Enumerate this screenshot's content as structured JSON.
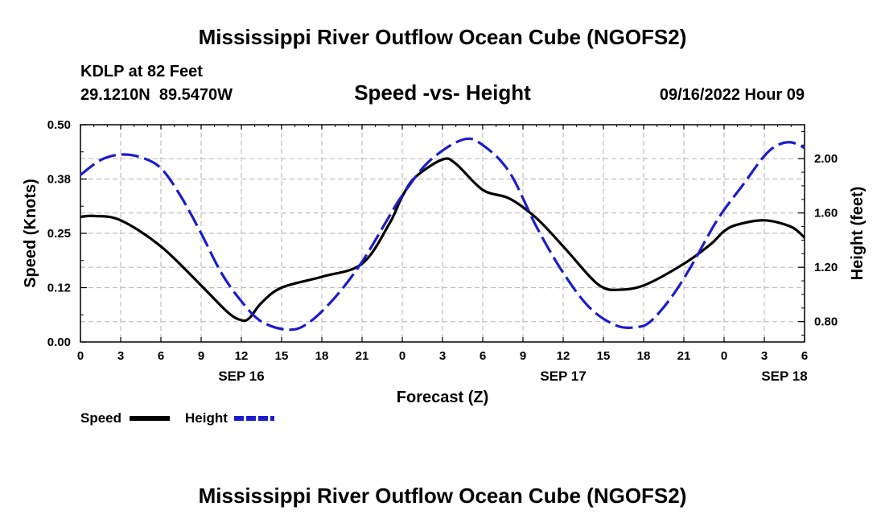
{
  "page_title": "Mississippi River Outflow Ocean Cube (NGOFS2)",
  "footer_title": "Mississippi River Outflow Ocean Cube (NGOFS2)",
  "station": {
    "name": "KDLP at 82 Feet",
    "coords": "29.1210N  89.5470W"
  },
  "issued": "09/16/2022 Hour 09",
  "chart_data": {
    "type": "line",
    "title": "Speed -vs- Height",
    "xlabel": "Forecast (Z)",
    "ylabel": "Speed (Knots)",
    "y2label": "Height (feet)",
    "x_range_hours": [
      0,
      54
    ],
    "ylim": [
      0,
      0.5
    ],
    "y2lim": [
      0.65,
      2.25
    ],
    "x_ticks": [
      {
        "hour": 0,
        "label": "0"
      },
      {
        "hour": 3,
        "label": "3"
      },
      {
        "hour": 6,
        "label": "6"
      },
      {
        "hour": 9,
        "label": "9"
      },
      {
        "hour": 12,
        "label": "12"
      },
      {
        "hour": 15,
        "label": "15"
      },
      {
        "hour": 18,
        "label": "18"
      },
      {
        "hour": 21,
        "label": "21"
      },
      {
        "hour": 24,
        "label": "0"
      },
      {
        "hour": 27,
        "label": "3"
      },
      {
        "hour": 30,
        "label": "6"
      },
      {
        "hour": 33,
        "label": "9"
      },
      {
        "hour": 36,
        "label": "12"
      },
      {
        "hour": 39,
        "label": "15"
      },
      {
        "hour": 42,
        "label": "18"
      },
      {
        "hour": 45,
        "label": "21"
      },
      {
        "hour": 48,
        "label": "0"
      },
      {
        "hour": 51,
        "label": "3"
      },
      {
        "hour": 54,
        "label": "6"
      }
    ],
    "date_labels": [
      {
        "hour": 12,
        "label": "SEP 16"
      },
      {
        "hour": 36,
        "label": "SEP 17"
      },
      {
        "hour": 52.5,
        "label": "SEP 18"
      }
    ],
    "y_ticks": [
      {
        "value": 0,
        "label": "0.00"
      },
      {
        "value": 0.125,
        "label": "0.12"
      },
      {
        "value": 0.25,
        "label": "0.25"
      },
      {
        "value": 0.375,
        "label": "0.38"
      },
      {
        "value": 0.5,
        "label": "0.50"
      }
    ],
    "y2_ticks": [
      {
        "value": 0.8,
        "label": "0.80"
      },
      {
        "value": 1.2,
        "label": "1.20"
      },
      {
        "value": 1.6,
        "label": "1.60"
      },
      {
        "value": 2.0,
        "label": "2.00"
      }
    ],
    "grid": true,
    "legend": "bottom-left",
    "series": [
      {
        "name": "Speed",
        "axis": "left",
        "color": "#000000",
        "dash": "solid",
        "x": [
          0,
          1,
          3,
          6,
          9,
          11,
          12,
          12.6,
          13.5,
          15,
          18,
          21,
          23,
          24,
          25,
          27,
          28,
          30,
          32,
          34,
          36,
          38,
          39,
          40,
          42,
          45,
          47,
          48,
          49,
          51,
          53,
          54
        ],
        "y": [
          0.288,
          0.29,
          0.28,
          0.22,
          0.13,
          0.068,
          0.05,
          0.055,
          0.09,
          0.125,
          0.15,
          0.18,
          0.27,
          0.335,
          0.38,
          0.42,
          0.41,
          0.35,
          0.33,
          0.285,
          0.22,
          0.15,
          0.125,
          0.12,
          0.13,
          0.18,
          0.225,
          0.255,
          0.27,
          0.28,
          0.265,
          0.24
        ]
      },
      {
        "name": "Height",
        "axis": "right",
        "color": "#1c1ccc",
        "dash": "dashed",
        "x": [
          0,
          1.5,
          3,
          4.5,
          6,
          7.5,
          9,
          10.5,
          12,
          13.5,
          15.5,
          17,
          19,
          21,
          23,
          24,
          26,
          28.5,
          30,
          32,
          34,
          36,
          38,
          40,
          41.5,
          42.5,
          44,
          45.5,
          47.5,
          49.5,
          51,
          52,
          53,
          54
        ],
        "y": [
          1.88,
          1.99,
          2.03,
          2.01,
          1.93,
          1.72,
          1.45,
          1.16,
          0.95,
          0.8,
          0.74,
          0.79,
          0.98,
          1.24,
          1.57,
          1.73,
          1.98,
          2.14,
          2.1,
          1.9,
          1.5,
          1.16,
          0.9,
          0.77,
          0.76,
          0.8,
          0.97,
          1.2,
          1.55,
          1.82,
          2.02,
          2.1,
          2.12,
          2.08
        ]
      }
    ]
  }
}
